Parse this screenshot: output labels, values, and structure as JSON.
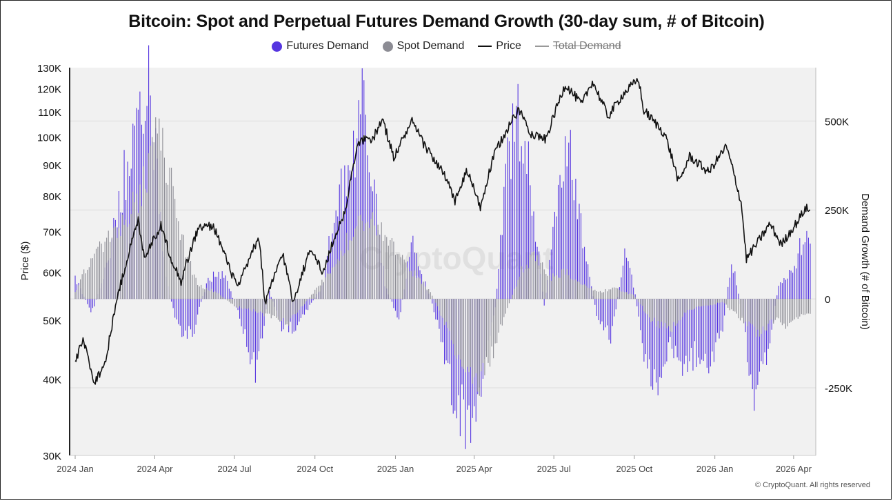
{
  "chart_data": {
    "type": "bar+line",
    "title": "Bitcoin: Spot and Perpetual Futures Demand Growth (30-day sum, # of Bitcoin)",
    "watermark": "CryptoQuant",
    "credit": "© CryptoQuant. All rights reserved",
    "y_left": {
      "label": "Price ($)",
      "scale": "log",
      "range": [
        30000,
        130000
      ],
      "ticks": [
        30000,
        40000,
        50000,
        60000,
        70000,
        80000,
        90000,
        100000,
        110000,
        120000,
        130000
      ],
      "tick_labels": [
        "30K",
        "40K",
        "50K",
        "60K",
        "70K",
        "80K",
        "90K",
        "100K",
        "110K",
        "120K",
        "130K"
      ]
    },
    "y_right": {
      "label": "Demand Growth (# of Bitcoin)",
      "scale": "linear",
      "range": [
        -440000,
        650000
      ],
      "ticks": [
        -250000,
        0,
        250000,
        500000
      ],
      "tick_labels": [
        "-250K",
        "0",
        "250K",
        "500K"
      ]
    },
    "x": {
      "range": [
        "2024-01-01",
        "2026-04-20"
      ],
      "ticks": [
        "2024-01-01",
        "2024-04-01",
        "2024-07-01",
        "2024-10-01",
        "2025-01-01",
        "2025-04-01",
        "2025-07-01",
        "2025-10-01",
        "2026-01-01",
        "2026-04-01"
      ],
      "tick_labels": [
        "2024 Jan",
        "2024 Apr",
        "2024 Jul",
        "2024 Oct",
        "2025 Jan",
        "2025 Apr",
        "2025 Jul",
        "2025 Oct",
        "2026 Jan",
        "2026 Apr"
      ]
    },
    "grid": true,
    "legend_position": "top-center",
    "series": [
      {
        "name": "Futures Demand",
        "kind": "bar",
        "axis": "right",
        "color": "#5535e0",
        "points": [
          [
            "2024-01-01",
            60000
          ],
          [
            "2024-01-20",
            -40000
          ],
          [
            "2024-02-05",
            80000
          ],
          [
            "2024-02-20",
            300000
          ],
          [
            "2024-03-05",
            420000
          ],
          [
            "2024-03-15",
            480000
          ],
          [
            "2024-03-25",
            590000
          ],
          [
            "2024-04-05",
            320000
          ],
          [
            "2024-04-15",
            40000
          ],
          [
            "2024-05-01",
            -110000
          ],
          [
            "2024-05-15",
            -90000
          ],
          [
            "2024-06-01",
            60000
          ],
          [
            "2024-06-20",
            70000
          ],
          [
            "2024-07-10",
            -80000
          ],
          [
            "2024-07-25",
            -210000
          ],
          [
            "2024-08-10",
            20000
          ],
          [
            "2024-08-25",
            -90000
          ],
          [
            "2024-09-10",
            -80000
          ],
          [
            "2024-09-25",
            -20000
          ],
          [
            "2024-10-10",
            40000
          ],
          [
            "2024-10-25",
            270000
          ],
          [
            "2024-11-05",
            330000
          ],
          [
            "2024-11-15",
            420000
          ],
          [
            "2024-11-25",
            560000
          ],
          [
            "2024-12-05",
            360000
          ],
          [
            "2024-12-20",
            40000
          ],
          [
            "2025-01-05",
            -60000
          ],
          [
            "2025-01-20",
            160000
          ],
          [
            "2025-02-05",
            40000
          ],
          [
            "2025-02-20",
            -80000
          ],
          [
            "2025-03-05",
            -260000
          ],
          [
            "2025-03-20",
            -340000
          ],
          [
            "2025-04-01",
            -390000
          ],
          [
            "2025-04-15",
            -180000
          ],
          [
            "2025-04-25",
            -20000
          ],
          [
            "2025-05-10",
            420000
          ],
          [
            "2025-05-25",
            550000
          ],
          [
            "2025-06-05",
            320000
          ],
          [
            "2025-06-20",
            -20000
          ],
          [
            "2025-07-10",
            360000
          ],
          [
            "2025-07-20",
            450000
          ],
          [
            "2025-08-05",
            140000
          ],
          [
            "2025-08-20",
            -60000
          ],
          [
            "2025-09-05",
            -110000
          ],
          [
            "2025-09-20",
            140000
          ],
          [
            "2025-10-01",
            30000
          ],
          [
            "2025-10-10",
            -140000
          ],
          [
            "2025-10-25",
            -260000
          ],
          [
            "2025-11-10",
            -120000
          ],
          [
            "2025-11-25",
            -190000
          ],
          [
            "2025-12-10",
            -160000
          ],
          [
            "2025-12-25",
            -220000
          ],
          [
            "2026-01-10",
            -80000
          ],
          [
            "2026-01-20",
            120000
          ],
          [
            "2026-02-01",
            -40000
          ],
          [
            "2026-02-15",
            -320000
          ],
          [
            "2026-03-01",
            -180000
          ],
          [
            "2026-03-15",
            40000
          ],
          [
            "2026-04-01",
            80000
          ],
          [
            "2026-04-10",
            160000
          ],
          [
            "2026-04-20",
            180000
          ]
        ]
      },
      {
        "name": "Spot Demand",
        "kind": "bar",
        "axis": "right",
        "color": "#8c8c94",
        "points": [
          [
            "2024-01-01",
            20000
          ],
          [
            "2024-01-20",
            120000
          ],
          [
            "2024-02-05",
            160000
          ],
          [
            "2024-02-20",
            200000
          ],
          [
            "2024-03-05",
            260000
          ],
          [
            "2024-03-20",
            330000
          ],
          [
            "2024-04-01",
            480000
          ],
          [
            "2024-04-15",
            400000
          ],
          [
            "2024-05-01",
            180000
          ],
          [
            "2024-05-20",
            40000
          ],
          [
            "2024-06-10",
            20000
          ],
          [
            "2024-07-01",
            -20000
          ],
          [
            "2024-07-20",
            -30000
          ],
          [
            "2024-08-10",
            -50000
          ],
          [
            "2024-09-01",
            -70000
          ],
          [
            "2024-09-20",
            -10000
          ],
          [
            "2024-10-10",
            50000
          ],
          [
            "2024-10-25",
            110000
          ],
          [
            "2024-11-10",
            180000
          ],
          [
            "2024-11-25",
            240000
          ],
          [
            "2024-12-10",
            210000
          ],
          [
            "2025-01-01",
            140000
          ],
          [
            "2025-01-20",
            80000
          ],
          [
            "2025-02-10",
            20000
          ],
          [
            "2025-03-01",
            -80000
          ],
          [
            "2025-03-20",
            -210000
          ],
          [
            "2025-04-05",
            -260000
          ],
          [
            "2025-04-20",
            -170000
          ],
          [
            "2025-05-10",
            -20000
          ],
          [
            "2025-05-25",
            80000
          ],
          [
            "2025-06-10",
            130000
          ],
          [
            "2025-06-25",
            60000
          ],
          [
            "2025-07-15",
            80000
          ],
          [
            "2025-08-01",
            40000
          ],
          [
            "2025-08-20",
            20000
          ],
          [
            "2025-09-10",
            30000
          ],
          [
            "2025-10-01",
            10000
          ],
          [
            "2025-10-20",
            -60000
          ],
          [
            "2025-11-10",
            -90000
          ],
          [
            "2025-12-01",
            -30000
          ],
          [
            "2025-12-20",
            -20000
          ],
          [
            "2026-01-10",
            -10000
          ],
          [
            "2026-02-01",
            -60000
          ],
          [
            "2026-02-20",
            -100000
          ],
          [
            "2026-03-10",
            -60000
          ],
          [
            "2026-03-25",
            -80000
          ],
          [
            "2026-04-10",
            -50000
          ],
          [
            "2026-04-20",
            -40000
          ]
        ]
      },
      {
        "name": "Price",
        "kind": "line",
        "axis": "left",
        "color": "#111111",
        "points": [
          [
            "2024-01-01",
            42500
          ],
          [
            "2024-01-10",
            46500
          ],
          [
            "2024-01-23",
            39500
          ],
          [
            "2024-02-05",
            42800
          ],
          [
            "2024-02-15",
            51800
          ],
          [
            "2024-02-28",
            62000
          ],
          [
            "2024-03-13",
            73000
          ],
          [
            "2024-03-20",
            63500
          ],
          [
            "2024-04-08",
            71500
          ],
          [
            "2024-04-19",
            63500
          ],
          [
            "2024-05-01",
            58000
          ],
          [
            "2024-05-21",
            71000
          ],
          [
            "2024-06-07",
            71500
          ],
          [
            "2024-06-25",
            61000
          ],
          [
            "2024-07-05",
            56500
          ],
          [
            "2024-07-29",
            68500
          ],
          [
            "2024-08-05",
            53000
          ],
          [
            "2024-08-25",
            64500
          ],
          [
            "2024-09-06",
            53500
          ],
          [
            "2024-09-27",
            66000
          ],
          [
            "2024-10-10",
            59500
          ],
          [
            "2024-10-29",
            72000
          ],
          [
            "2024-11-06",
            76000
          ],
          [
            "2024-11-13",
            90000
          ],
          [
            "2024-11-22",
            99000
          ],
          [
            "2024-12-05",
            98500
          ],
          [
            "2024-12-17",
            107000
          ],
          [
            "2024-12-30",
            92500
          ],
          [
            "2025-01-20",
            106000
          ],
          [
            "2025-02-02",
            97500
          ],
          [
            "2025-02-25",
            87000
          ],
          [
            "2025-03-10",
            78500
          ],
          [
            "2025-03-24",
            88000
          ],
          [
            "2025-04-08",
            76500
          ],
          [
            "2025-04-25",
            94500
          ],
          [
            "2025-05-22",
            111000
          ],
          [
            "2025-06-05",
            101500
          ],
          [
            "2025-06-22",
            99000
          ],
          [
            "2025-07-14",
            122000
          ],
          [
            "2025-08-02",
            113000
          ],
          [
            "2025-08-14",
            123500
          ],
          [
            "2025-09-01",
            108000
          ],
          [
            "2025-09-18",
            117500
          ],
          [
            "2025-10-06",
            124500
          ],
          [
            "2025-10-11",
            111000
          ],
          [
            "2025-11-05",
            101000
          ],
          [
            "2025-11-21",
            84000
          ],
          [
            "2025-12-03",
            93000
          ],
          [
            "2025-12-25",
            87500
          ],
          [
            "2026-01-14",
            96500
          ],
          [
            "2026-01-31",
            78000
          ],
          [
            "2026-02-06",
            63000
          ],
          [
            "2026-02-20",
            67500
          ],
          [
            "2026-03-05",
            72000
          ],
          [
            "2026-03-18",
            66500
          ],
          [
            "2026-04-05",
            72500
          ],
          [
            "2026-04-15",
            76500
          ],
          [
            "2026-04-20",
            75500
          ]
        ]
      },
      {
        "name": "Total Demand",
        "kind": "line",
        "axis": "right",
        "color": "#999999",
        "hidden": true
      }
    ]
  },
  "legend": [
    {
      "label": "Futures Demand",
      "marker": "dot",
      "color": "#5535e0",
      "disabled": false
    },
    {
      "label": "Spot Demand",
      "marker": "dot",
      "color": "#8c8c94",
      "disabled": false
    },
    {
      "label": "Price",
      "marker": "line",
      "color": "#111111",
      "disabled": false
    },
    {
      "label": "Total Demand",
      "marker": "line",
      "color": "#999999",
      "disabled": true
    }
  ],
  "colors": {
    "plot_background": "#f1f1f1",
    "grid": "#dddddd",
    "axis": "#222222"
  }
}
